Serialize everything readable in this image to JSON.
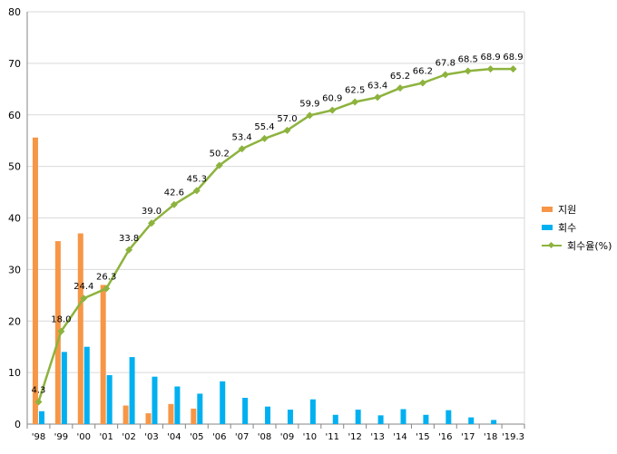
{
  "chart_data": {
    "type": "bar+line",
    "categories": [
      "'98",
      "'99",
      "'00",
      "'01",
      "'02",
      "'03",
      "'04",
      "'05",
      "'06",
      "'07",
      "'08",
      "'09",
      "'10",
      "'11",
      "'12",
      "'13",
      "'14",
      "'15",
      "'16",
      "'17",
      "'18",
      "'19.3"
    ],
    "series": [
      {
        "name": "지원",
        "type": "bar",
        "color": "#F79646",
        "values": [
          55.6,
          35.5,
          37.0,
          27.0,
          3.6,
          2.1,
          3.9,
          3.0,
          null,
          null,
          null,
          null,
          null,
          null,
          null,
          null,
          null,
          null,
          null,
          null,
          null,
          null
        ]
      },
      {
        "name": "회수",
        "type": "bar",
        "color": "#00B0F0",
        "values": [
          2.5,
          14.0,
          15.0,
          9.5,
          13.0,
          9.2,
          7.3,
          5.9,
          8.3,
          5.1,
          3.4,
          2.8,
          4.8,
          1.8,
          2.8,
          1.7,
          2.9,
          1.8,
          2.7,
          1.3,
          0.8,
          null
        ]
      },
      {
        "name": "회수율(%)",
        "type": "line",
        "color": "#8DB33E",
        "values": [
          4.3,
          18.0,
          24.4,
          26.3,
          33.8,
          39.0,
          42.6,
          45.3,
          50.2,
          53.4,
          55.4,
          57.0,
          59.9,
          60.9,
          62.5,
          63.4,
          65.2,
          66.2,
          67.8,
          68.5,
          68.9,
          68.9
        ],
        "labels": [
          "4.3",
          "18.0",
          "24.4",
          "26.3",
          "33.8",
          "39.0",
          "42.6",
          "45.3",
          "50.2",
          "53.4",
          "55.4",
          "57.0",
          "59.9",
          "60.9",
          "62.5",
          "63.4",
          "65.2",
          "66.2",
          "67.8",
          "68.5",
          "68.9",
          "68.9"
        ]
      }
    ],
    "y_ticks": [
      "0",
      "10",
      "20",
      "30",
      "40",
      "50",
      "60",
      "70",
      "80"
    ],
    "ylim": [
      0,
      80
    ],
    "grid": true,
    "legend_position": "right",
    "title": "",
    "xlabel": "",
    "ylabel": ""
  }
}
